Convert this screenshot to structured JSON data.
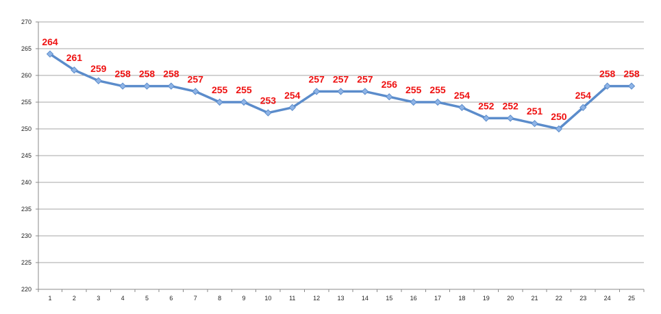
{
  "chart_data": {
    "type": "line",
    "title": "",
    "xlabel": "",
    "ylabel": "",
    "categories": [
      "1",
      "2",
      "3",
      "4",
      "5",
      "6",
      "7",
      "8",
      "9",
      "10",
      "11",
      "12",
      "13",
      "14",
      "15",
      "16",
      "17",
      "18",
      "19",
      "20",
      "21",
      "22",
      "23",
      "24",
      "25"
    ],
    "series": [
      {
        "values": [
          264,
          261,
          259,
          258,
          258,
          258,
          257,
          255,
          255,
          253,
          254,
          257,
          257,
          257,
          256,
          255,
          255,
          254,
          252,
          252,
          251,
          250,
          254,
          258,
          258
        ]
      }
    ],
    "ylim": [
      220,
      270
    ],
    "ytick_step": 5,
    "yticks": [
      "220",
      "225",
      "230",
      "235",
      "240",
      "245",
      "250",
      "255",
      "260",
      "265",
      "270"
    ],
    "grid": true,
    "legend": "none",
    "line_color": "#5b8ccb",
    "marker": "diamond",
    "marker_color": "#8fb4e6",
    "data_label_color": "#ee1111",
    "grid_color": "#a6a6a6"
  }
}
